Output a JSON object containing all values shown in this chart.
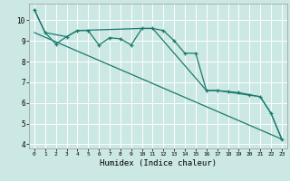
{
  "xlabel": "Humidex (Indice chaleur)",
  "bg_color": "#cce8e4",
  "grid_color": "#ffffff",
  "line_color": "#1a7a6e",
  "xlim": [
    -0.5,
    23.5
  ],
  "ylim": [
    3.8,
    10.8
  ],
  "yticks": [
    4,
    5,
    6,
    7,
    8,
    9,
    10
  ],
  "xticks": [
    0,
    1,
    2,
    3,
    4,
    5,
    6,
    7,
    8,
    9,
    10,
    11,
    12,
    13,
    14,
    15,
    16,
    17,
    18,
    19,
    20,
    21,
    22,
    23
  ],
  "series1_x": [
    0,
    1,
    2,
    3,
    4,
    5,
    6,
    7,
    8,
    9,
    10,
    11,
    12,
    13,
    14,
    15,
    16,
    17,
    18,
    19,
    20,
    21,
    22,
    23
  ],
  "series1_y": [
    10.5,
    9.4,
    8.85,
    9.2,
    9.5,
    9.5,
    8.8,
    9.15,
    9.1,
    8.8,
    9.6,
    9.6,
    9.5,
    9.0,
    8.4,
    8.4,
    6.6,
    6.6,
    6.55,
    6.5,
    6.4,
    6.3,
    5.5,
    4.25
  ],
  "series2_x": [
    0,
    1,
    3,
    4,
    10,
    11,
    16,
    17,
    21,
    22,
    23
  ],
  "series2_y": [
    10.5,
    9.4,
    9.2,
    9.5,
    9.6,
    9.6,
    6.6,
    6.6,
    6.3,
    5.5,
    4.25
  ],
  "series3_x": [
    0,
    23
  ],
  "series3_y": [
    9.4,
    4.25
  ]
}
